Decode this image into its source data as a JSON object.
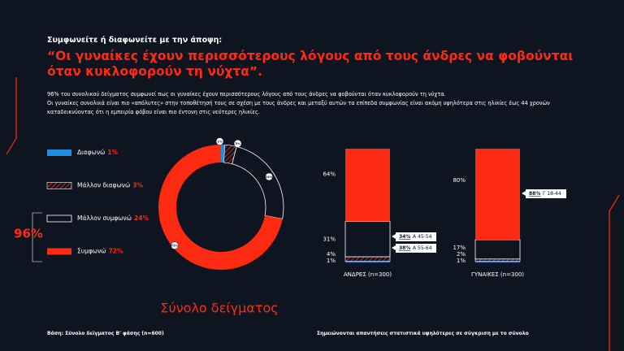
{
  "slide": {
    "question": "Συμφωνείτε ή διαφωνείτε με την άποψη:",
    "quote": "“Οι γυναίκες έχουν περισσότερους λόγους από τους άνδρες να φοβούνται όταν κυκλοφορούν τη νύχτα”.",
    "paragraphs": [
      "96% του συνολικού δείγματος συμφωνεί πως οι γυναίκες έχουν περισσότερους λόγους από τους άνδρες να φοβούνται όταν κυκλοφορούν τη νύχτα.",
      "Οι γυναίκες συνολικά είναι πιο «απόλυτες» στην τοποθέτησή τους σε σχέση με τους άνδρες και μεταξύ αυτών τα επίπεδα συμφωνίας είναι ακόμη υψηλότερα στις ηλικίες έως 44 χρονών καταδεικνύοντας ότι η εμπειρία φόβου είναι πιο έντονη στις νεότερες ηλικίες."
    ],
    "base": "Βάση: Σύνολο δείγματος Β' φάσης (n=600)",
    "note": "Σημειώνονται απαντήσεις στατιστικά υψηλότερες σε σύγκριση με το σύνολο"
  },
  "chart_data": [
    {
      "type": "pie",
      "donut": true,
      "title": "Σύνολο δείγματος",
      "categories": [
        "Διαφωνώ",
        "Μάλλον διαφωνώ",
        "Μάλλον συμφωνώ",
        "Συμφωνώ"
      ],
      "values": [
        1,
        3,
        24,
        72
      ],
      "value_labels": [
        "1%",
        "3%",
        "24%",
        "72%"
      ],
      "colors": [
        "#1e8fe0",
        "#ff2a12",
        "#0e1420",
        "#ff2a12"
      ],
      "styles": [
        "solid",
        "hatched",
        "outline",
        "solid"
      ],
      "group_label": "96%"
    },
    {
      "type": "bar",
      "stacked": true,
      "categories": [
        "ΑΝΔΡΕΣ (n=300)",
        "ΓΥΝΑΙΚΕΣ (n=300)"
      ],
      "series": [
        {
          "color": "#1e8fe0",
          "style": "solid",
          "values": [
            1,
            1
          ],
          "value_labels": [
            "1%",
            "1%"
          ]
        },
        {
          "color": "#ff2a12",
          "style": "hatched",
          "values": [
            4,
            2
          ],
          "value_labels": [
            "4%",
            "2%"
          ]
        },
        {
          "color": "#0e1420",
          "style": "outline",
          "values": [
            31,
            17
          ],
          "value_labels": [
            "31%",
            "17%"
          ]
        },
        {
          "color": "#ff2a12",
          "style": "solid",
          "values": [
            64,
            80
          ],
          "value_labels": [
            "64%",
            "80%"
          ]
        }
      ],
      "callouts": [
        [
          {
            "value": "34%",
            "text": "Α 45-54"
          },
          {
            "value": "38%",
            "text": "Α 55-64"
          }
        ],
        [
          {
            "value": "88%",
            "text": "Γ 18-44"
          }
        ]
      ]
    }
  ]
}
